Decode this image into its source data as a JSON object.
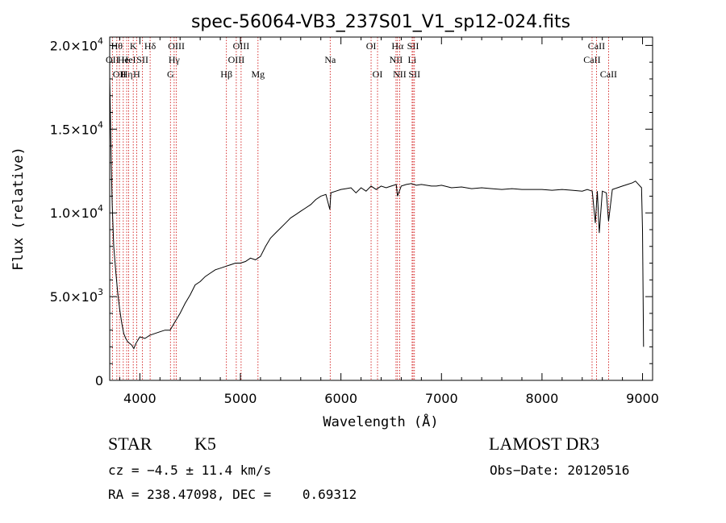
{
  "chart_data": {
    "type": "line",
    "title": "spec-56064-VB3_237S01_V1_sp12-024.fits",
    "xlabel": "Wavelength (Å)",
    "ylabel": "Flux (relative)",
    "xlim": [
      3700,
      9100
    ],
    "ylim": [
      0,
      20500
    ],
    "x_ticks": [
      4000,
      5000,
      6000,
      7000,
      8000,
      9000
    ],
    "x_tick_labels": [
      "4000",
      "5000",
      "6000",
      "7000",
      "8000",
      "9000"
    ],
    "y_ticks": [
      0,
      5000,
      10000,
      15000,
      20000
    ],
    "y_tick_labels": [
      {
        "mantissa": "0",
        "exp": ""
      },
      {
        "mantissa": "5.0×10",
        "exp": "3"
      },
      {
        "mantissa": "1.0×10",
        "exp": "4"
      },
      {
        "mantissa": "1.5×10",
        "exp": "4"
      },
      {
        "mantissa": "2.0×10",
        "exp": "4"
      }
    ],
    "line_color": "#000000",
    "marker_color": "#cc0000",
    "series": [
      {
        "name": "spectrum",
        "x": [
          3700,
          3705,
          3715,
          3725,
          3740,
          3760,
          3780,
          3800,
          3820,
          3840,
          3860,
          3880,
          3900,
          3920,
          3940,
          3960,
          3980,
          4000,
          4050,
          4100,
          4150,
          4200,
          4250,
          4300,
          4350,
          4400,
          4450,
          4500,
          4550,
          4600,
          4650,
          4700,
          4750,
          4800,
          4850,
          4900,
          4950,
          5000,
          5050,
          5100,
          5150,
          5200,
          5250,
          5300,
          5350,
          5400,
          5450,
          5500,
          5550,
          5600,
          5650,
          5700,
          5750,
          5800,
          5850,
          5890,
          5900,
          5950,
          6000,
          6050,
          6100,
          6150,
          6200,
          6250,
          6300,
          6350,
          6400,
          6450,
          6500,
          6550,
          6563,
          6600,
          6650,
          6700,
          6750,
          6800,
          6850,
          6900,
          6950,
          7000,
          7100,
          7200,
          7300,
          7400,
          7500,
          7600,
          7700,
          7800,
          7900,
          8000,
          8100,
          8200,
          8300,
          8400,
          8450,
          8500,
          8530,
          8550,
          8570,
          8600,
          8640,
          8662,
          8700,
          8750,
          8800,
          8850,
          8900,
          8930,
          8960,
          8990,
          9000,
          9010
        ],
        "y": [
          18000,
          16500,
          13000,
          10500,
          8000,
          6500,
          5200,
          4200,
          3400,
          2800,
          2500,
          2300,
          2200,
          2100,
          1900,
          2200,
          2400,
          2600,
          2500,
          2700,
          2800,
          2900,
          3000,
          3000,
          3500,
          4000,
          4600,
          5100,
          5700,
          5900,
          6200,
          6400,
          6600,
          6700,
          6800,
          6900,
          7000,
          7000,
          7100,
          7300,
          7200,
          7400,
          8000,
          8500,
          8800,
          9100,
          9400,
          9700,
          9900,
          10100,
          10300,
          10500,
          10800,
          11000,
          11100,
          10200,
          11200,
          11300,
          11400,
          11450,
          11500,
          11200,
          11500,
          11300,
          11600,
          11400,
          11600,
          11500,
          11600,
          11700,
          11000,
          11600,
          11700,
          11750,
          11650,
          11700,
          11650,
          11600,
          11600,
          11650,
          11500,
          11550,
          11450,
          11500,
          11450,
          11400,
          11450,
          11400,
          11400,
          11400,
          11350,
          11400,
          11350,
          11300,
          11400,
          11300,
          9400,
          11300,
          8800,
          11300,
          11200,
          9500,
          11400,
          11500,
          11600,
          11700,
          11800,
          11900,
          11700,
          11500,
          9000,
          2000
        ]
      }
    ],
    "lines": [
      {
        "wavelength": 3727,
        "label": "OII",
        "row": 1
      },
      {
        "wavelength": 3771,
        "label": "Hθ",
        "row": 0
      },
      {
        "wavelength": 3797,
        "label": "OII",
        "row": 2
      },
      {
        "wavelength": 3835,
        "label": "He",
        "row": 1
      },
      {
        "wavelength": 3869,
        "label": "Hη",
        "row": 2
      },
      {
        "wavelength": 3889,
        "label": "HeI",
        "row": 1
      },
      {
        "wavelength": 3934,
        "label": "K",
        "row": 0
      },
      {
        "wavelength": 3968,
        "label": "H",
        "row": 2
      },
      {
        "wavelength": 4026,
        "label": "SII",
        "row": 1
      },
      {
        "wavelength": 4102,
        "label": "Hδ",
        "row": 0
      },
      {
        "wavelength": 4304,
        "label": "G",
        "row": 2
      },
      {
        "wavelength": 4341,
        "label": "Hγ",
        "row": 1
      },
      {
        "wavelength": 4363,
        "label": "OIII",
        "row": 0
      },
      {
        "wavelength": 4861,
        "label": "Hβ",
        "row": 2
      },
      {
        "wavelength": 4959,
        "label": "OIII",
        "row": 1
      },
      {
        "wavelength": 5007,
        "label": "OIII",
        "row": 0
      },
      {
        "wavelength": 5175,
        "label": "Mg",
        "row": 2
      },
      {
        "wavelength": 5893,
        "label": "Na",
        "row": 1
      },
      {
        "wavelength": 6300,
        "label": "OI",
        "row": 0
      },
      {
        "wavelength": 6364,
        "label": "OI",
        "row": 2
      },
      {
        "wavelength": 6548,
        "label": "NII",
        "row": 1
      },
      {
        "wavelength": 6563,
        "label": "Hα",
        "row": 0
      },
      {
        "wavelength": 6584,
        "label": "NII",
        "row": 2
      },
      {
        "wavelength": 6708,
        "label": "Li",
        "row": 1
      },
      {
        "wavelength": 6717,
        "label": "SII",
        "row": 0
      },
      {
        "wavelength": 6731,
        "label": "SII",
        "row": 2
      },
      {
        "wavelength": 8498,
        "label": "CaII",
        "row": 1
      },
      {
        "wavelength": 8542,
        "label": "CaII",
        "row": 0
      },
      {
        "wavelength": 8662,
        "label": "CaII",
        "row": 2
      }
    ]
  },
  "info": {
    "class": "STAR",
    "subclass": "K5",
    "survey": "LAMOST DR3",
    "cz": "cz = −4.5 ± 11.4 km/s",
    "obs_date": "Obs−Date: 20120516",
    "coords": "RA = 238.47098, DEC =    0.69312"
  }
}
